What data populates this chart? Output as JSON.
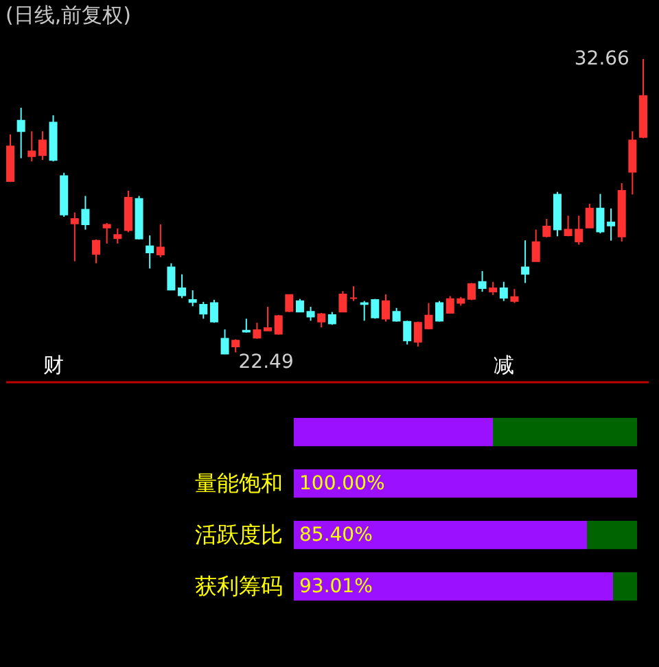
{
  "chart_data": [
    {
      "type": "candlestick",
      "title": "(日线,前复权)",
      "tick_labels": false,
      "categories": [
        null,
        null,
        null,
        null,
        null,
        null,
        null,
        null,
        null,
        null,
        null,
        null,
        null,
        null,
        null,
        null,
        null,
        null,
        null,
        null,
        null,
        null,
        null,
        null,
        null,
        null,
        null,
        null,
        null,
        null,
        null,
        null,
        null,
        null,
        null,
        null,
        null,
        null,
        null,
        null,
        null,
        null,
        null,
        null,
        null,
        null,
        null,
        null,
        null,
        null,
        null,
        null,
        null,
        null,
        null,
        null,
        null,
        null,
        null,
        null
      ],
      "ohlc": [
        [
          28.45,
          30.06,
          28.42,
          29.65
        ],
        [
          30.54,
          30.98,
          29.24,
          30.17
        ],
        [
          29.31,
          30.17,
          29.13,
          29.48
        ],
        [
          29.34,
          30.17,
          29.18,
          29.86
        ],
        [
          30.47,
          30.72,
          29.13,
          29.18
        ],
        [
          28.63,
          28.74,
          27.22,
          27.3
        ],
        [
          26.99,
          27.37,
          25.69,
          27.15
        ],
        [
          27.47,
          27.94,
          26.78,
          26.96
        ],
        [
          25.94,
          26.44,
          25.62,
          26.4
        ],
        [
          26.85,
          27.01,
          26.3,
          26.95
        ],
        [
          26.48,
          26.82,
          26.3,
          26.6
        ],
        [
          26.76,
          28.12,
          26.69,
          27.88
        ],
        [
          27.84,
          27.94,
          26.44,
          26.47
        ],
        [
          26.21,
          26.58,
          25.44,
          25.99
        ],
        [
          25.92,
          26.96,
          25.83,
          26.17
        ],
        [
          25.48,
          25.62,
          24.69,
          24.71
        ],
        [
          24.76,
          25.24,
          24.42,
          24.51
        ],
        [
          24.36,
          24.69,
          24.14,
          24.28
        ],
        [
          24.19,
          24.29,
          23.71,
          23.88
        ],
        [
          24.25,
          24.36,
          23.57,
          23.61
        ],
        [
          23.02,
          23.34,
          22.49,
          22.5
        ],
        [
          22.75,
          23.0,
          22.55,
          22.96
        ],
        [
          23.3,
          23.71,
          23.23,
          23.26
        ],
        [
          23.05,
          23.57,
          23.02,
          23.32
        ],
        [
          23.3,
          24.12,
          23.3,
          23.39
        ],
        [
          23.19,
          23.84,
          23.16,
          23.8
        ],
        [
          23.97,
          24.55,
          23.94,
          24.53
        ],
        [
          24.32,
          24.39,
          23.94,
          23.95
        ],
        [
          23.95,
          24.12,
          23.64,
          23.78
        ],
        [
          23.61,
          23.91,
          23.41,
          23.87
        ],
        [
          23.84,
          23.94,
          23.5,
          23.54
        ],
        [
          23.95,
          24.66,
          23.94,
          24.55
        ],
        [
          24.42,
          24.83,
          24.32,
          24.42
        ],
        [
          24.25,
          24.32,
          23.64,
          24.21
        ],
        [
          24.36,
          24.39,
          23.71,
          23.75
        ],
        [
          23.71,
          24.55,
          23.61,
          24.32
        ],
        [
          23.95,
          24.08,
          23.61,
          23.64
        ],
        [
          23.61,
          23.64,
          22.82,
          22.96
        ],
        [
          22.91,
          23.61,
          22.75,
          23.57
        ],
        [
          23.37,
          24.25,
          23.34,
          23.82
        ],
        [
          24.25,
          24.32,
          23.61,
          23.64
        ],
        [
          23.91,
          24.49,
          23.88,
          24.39
        ],
        [
          24.25,
          24.46,
          24.16,
          24.39
        ],
        [
          24.39,
          24.94,
          24.35,
          24.91
        ],
        [
          24.98,
          25.35,
          24.64,
          24.76
        ],
        [
          24.64,
          24.98,
          24.53,
          24.76
        ],
        [
          24.76,
          24.98,
          24.32,
          24.43
        ],
        [
          24.32,
          24.73,
          24.25,
          24.46
        ],
        [
          25.48,
          26.41,
          24.94,
          25.25
        ],
        [
          25.69,
          26.78,
          25.69,
          26.35
        ],
        [
          26.55,
          27.15,
          26.51,
          26.89
        ],
        [
          27.99,
          28.08,
          26.55,
          26.78
        ],
        [
          26.58,
          27.26,
          26.55,
          26.78
        ],
        [
          26.37,
          27.26,
          26.26,
          26.78
        ],
        [
          26.85,
          27.67,
          26.85,
          27.51
        ],
        [
          27.51,
          28.01,
          26.65,
          26.71
        ],
        [
          27.03,
          27.51,
          26.4,
          26.92
        ],
        [
          26.54,
          28.38,
          26.37,
          28.12
        ],
        [
          28.77,
          30.17,
          27.99,
          29.86
        ],
        [
          29.97,
          32.66,
          29.93,
          31.39
        ]
      ],
      "annotations": [
        "32.66",
        "22.49",
        "财",
        "减"
      ]
    },
    {
      "type": "bar",
      "orientation": "horizontal",
      "stacked": true,
      "tick_labels": "y",
      "xlim": [
        0,
        100
      ],
      "categories": [
        null,
        "量能饱和",
        "活跃度比",
        "获利筹码"
      ],
      "series": [
        {
          "color": "#9b10ff",
          "values": [
            58,
            100,
            85.4,
            93.01
          ],
          "value_labels": [
            null,
            "100.00%",
            "85.40%",
            "93.01%"
          ]
        },
        {
          "color": "#006400",
          "values": [
            42,
            0,
            14.6,
            6.99
          ]
        }
      ]
    }
  ]
}
